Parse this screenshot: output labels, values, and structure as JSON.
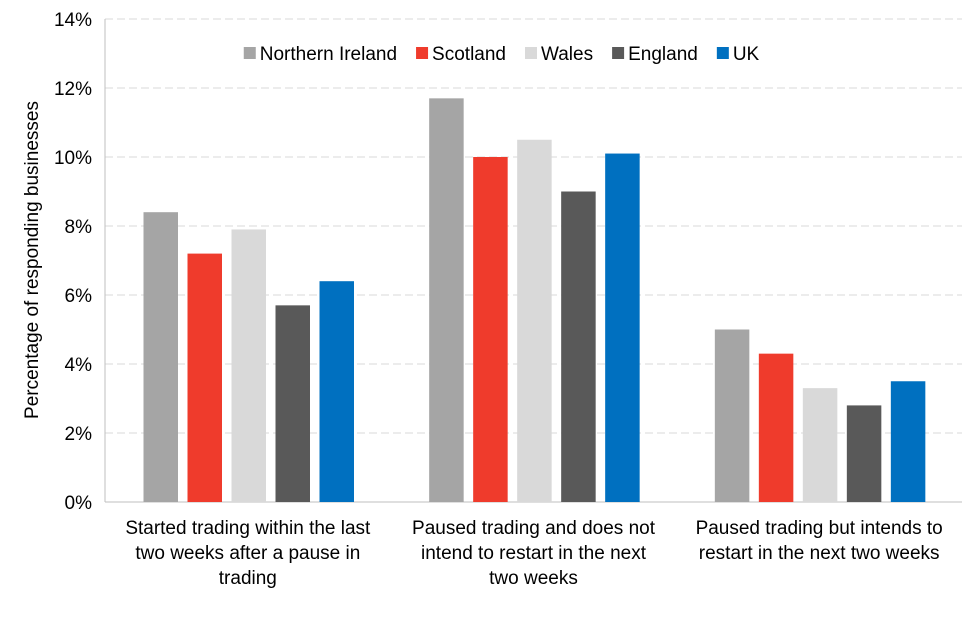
{
  "chart_data": {
    "type": "bar",
    "title": "",
    "xlabel": "",
    "ylabel": "Percentage of responding businesses",
    "ylim": [
      0,
      14
    ],
    "y_ticks": [
      "0%",
      "2%",
      "4%",
      "6%",
      "8%",
      "10%",
      "12%",
      "14%"
    ],
    "y_tick_values": [
      0,
      2,
      4,
      6,
      8,
      10,
      12,
      14
    ],
    "grid": true,
    "legend_position": "top",
    "categories": [
      "Started trading within the last two weeks after a pause in trading",
      "Paused trading and does not intend to restart in the next two weeks",
      "Paused trading but intends to restart in the next two weeks"
    ],
    "category_label_lines": [
      [
        "Started trading within the last",
        "two weeks after a pause in",
        "trading"
      ],
      [
        "Paused trading and does not",
        "intend to restart in the next",
        "two weeks"
      ],
      [
        "Paused trading but intends to",
        "restart in the next two weeks"
      ]
    ],
    "series": [
      {
        "name": "Northern Ireland",
        "color": "#a5a5a5",
        "values": [
          8.4,
          11.7,
          5.0
        ]
      },
      {
        "name": "Scotland",
        "color": "#ef3b2c",
        "values": [
          7.2,
          10.0,
          4.3
        ]
      },
      {
        "name": "Wales",
        "color": "#d9d9d9",
        "values": [
          7.9,
          10.5,
          3.3
        ]
      },
      {
        "name": "England",
        "color": "#595959",
        "values": [
          5.7,
          9.0,
          2.8
        ]
      },
      {
        "name": "UK",
        "color": "#0070c0",
        "values": [
          6.4,
          10.1,
          3.5
        ]
      }
    ]
  }
}
